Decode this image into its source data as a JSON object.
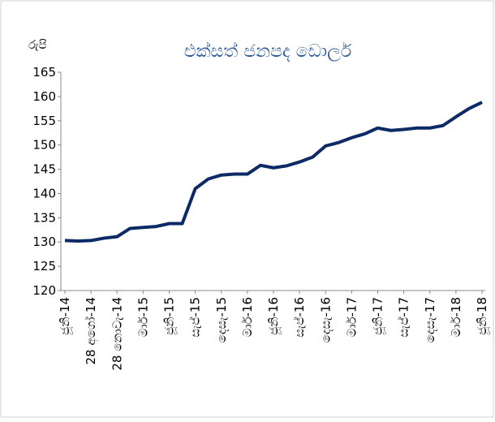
{
  "chart_data": {
    "type": "line",
    "title": "එක්සත් ජනපද ඩොලර්",
    "y_label": "රුපි",
    "categories": [
      "ජූනි-14",
      null,
      "28 අගෝ-14",
      null,
      "28 නොවැ-14",
      null,
      "මාර්-15",
      null,
      "ජූනි-15",
      null,
      "සැප්-15",
      null,
      "දෙසැ-15",
      null,
      "මාර්-16",
      null,
      "ජූනි-16",
      null,
      "සැප්-16",
      null,
      "දෙසැ-16",
      null,
      "මාර්-17",
      null,
      "ජූනි-17",
      null,
      "සැප්-17",
      null,
      "දෙසැ-17",
      null,
      "මාර්-18",
      null,
      "ජූනි-18"
    ],
    "series": [
      {
        "name": "රුපි",
        "color": "#0b2a66",
        "values": [
          130.3,
          130.2,
          130.3,
          130.8,
          131.1,
          132.8,
          133.0,
          133.2,
          133.8,
          133.8,
          141.0,
          143.0,
          143.8,
          144.0,
          144.0,
          145.8,
          145.3,
          145.7,
          146.5,
          147.5,
          149.8,
          150.5,
          151.5,
          152.3,
          153.5,
          153.0,
          153.2,
          153.5,
          153.5,
          154.0,
          155.8,
          157.5,
          158.8
        ]
      }
    ],
    "ylim": [
      120,
      165
    ],
    "yticks": [
      120,
      125,
      130,
      135,
      140,
      145,
      150,
      155,
      160,
      165
    ],
    "grid": false
  }
}
